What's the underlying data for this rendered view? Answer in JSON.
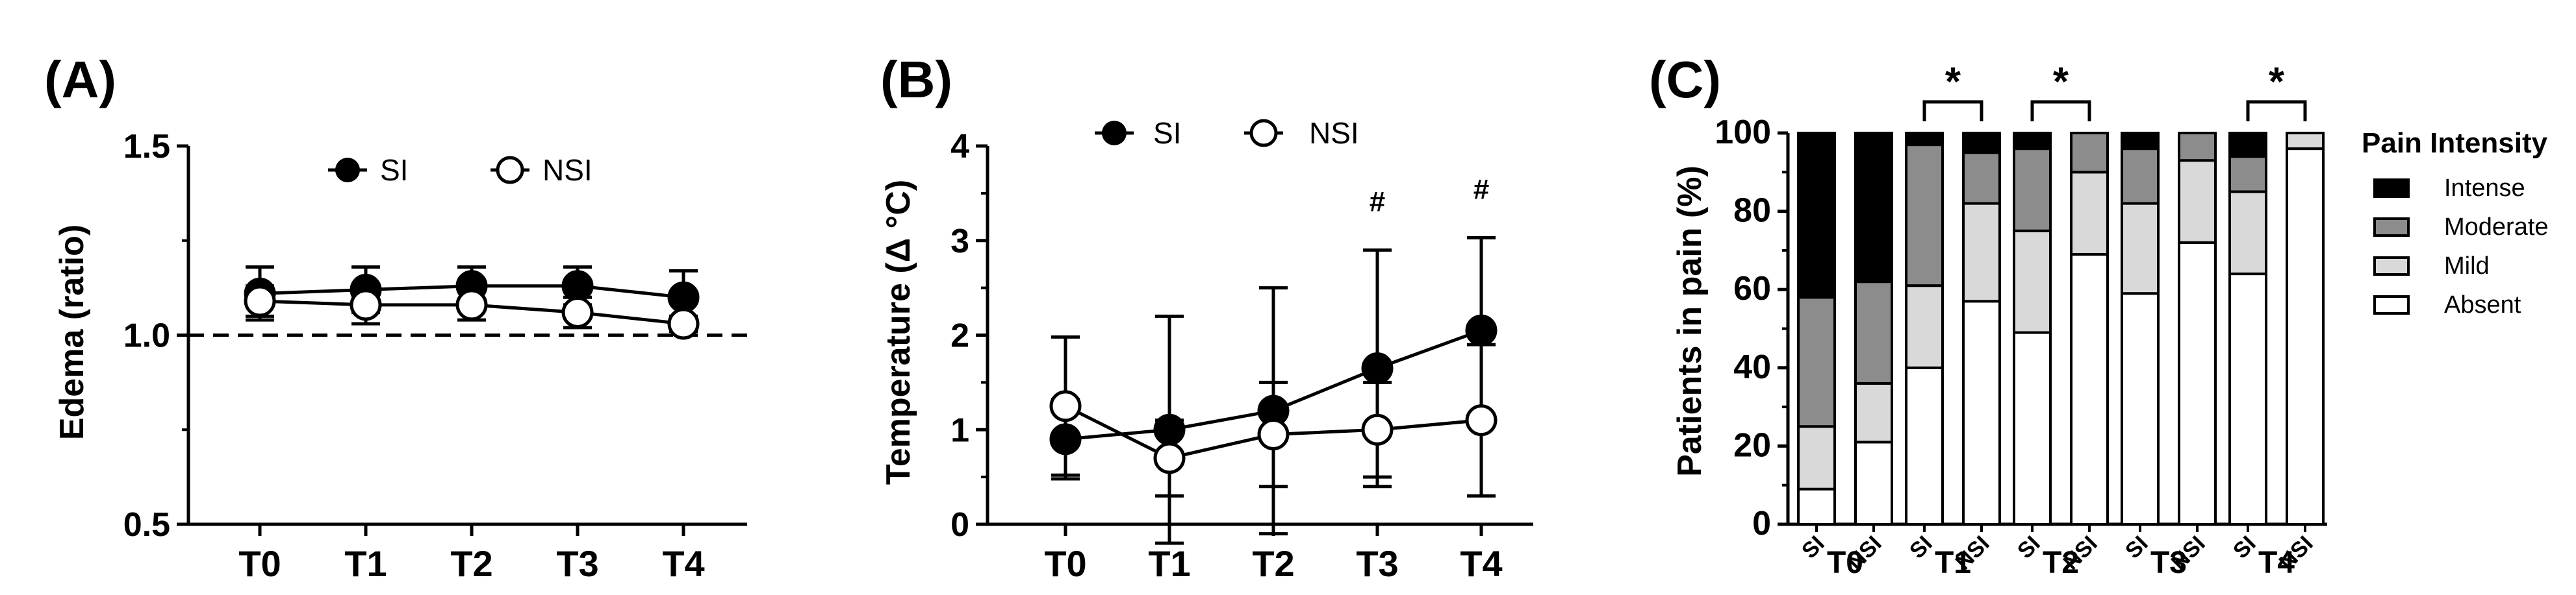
{
  "colors": {
    "axis": "#000000",
    "filled_marker": "#000000",
    "open_marker": "#ffffff",
    "intense": "#000000",
    "moderate": "#8c8c8c",
    "mild": "#d9d9d9",
    "absent": "#ffffff"
  },
  "chart_data": [
    {
      "panel": "(A)",
      "type": "line",
      "title": "",
      "xlabel": "",
      "ylabel": "Edema (ratio)",
      "categories": [
        "T0",
        "T1",
        "T2",
        "T3",
        "T4"
      ],
      "ylim": [
        0.5,
        1.5
      ],
      "yticks": [
        "0.5",
        "1.0",
        "1.5"
      ],
      "reference_line": 1.0,
      "legend": [
        "SI",
        "NSI"
      ],
      "series": [
        {
          "name": "SI",
          "marker": "filled",
          "values": [
            1.11,
            1.12,
            1.13,
            1.13,
            1.1
          ],
          "err": [
            0.07,
            0.06,
            0.05,
            0.05,
            0.07
          ]
        },
        {
          "name": "NSI",
          "marker": "open",
          "values": [
            1.09,
            1.08,
            1.08,
            1.06,
            1.03
          ],
          "err": [
            0.04,
            0.05,
            0.04,
            0.04,
            0.02
          ]
        }
      ]
    },
    {
      "panel": "(B)",
      "type": "line",
      "title": "",
      "xlabel": "",
      "ylabel": "Temperature (Δ °C)",
      "categories": [
        "T0",
        "T1",
        "T2",
        "T3",
        "T4"
      ],
      "ylim": [
        0,
        4
      ],
      "yticks": [
        "0",
        "1",
        "2",
        "3",
        "4"
      ],
      "legend": [
        "SI",
        "NSI"
      ],
      "annotations": [
        {
          "category": "T3",
          "text": "#"
        },
        {
          "category": "T4",
          "text": "#"
        }
      ],
      "series": [
        {
          "name": "SI",
          "marker": "filled",
          "values": [
            0.9,
            1.0,
            1.2,
            1.65,
            2.05
          ],
          "err": [
            0.42,
            1.2,
            1.3,
            1.25,
            0.98
          ]
        },
        {
          "name": "NSI",
          "marker": "open",
          "values": [
            1.25,
            0.7,
            0.95,
            1.0,
            1.1
          ],
          "err": [
            0.73,
            0.4,
            0.55,
            0.5,
            0.8
          ]
        }
      ]
    },
    {
      "panel": "(C)",
      "type": "bar",
      "stacked": true,
      "title": "",
      "xlabel": "",
      "ylabel": "Patients in pain (%)",
      "ylim": [
        0,
        100
      ],
      "yticks": [
        "0",
        "20",
        "40",
        "60",
        "80",
        "100"
      ],
      "legend_title": "Pain Intensity",
      "legend": [
        "Intense",
        "Moderate",
        "Mild",
        "Absent"
      ],
      "groups": [
        "T0",
        "T1",
        "T2",
        "T3",
        "T4"
      ],
      "subcategories": [
        "SI",
        "NSI"
      ],
      "significance": [
        {
          "group": "T1",
          "text": "*"
        },
        {
          "group": "T2",
          "text": "*"
        },
        {
          "group": "T4",
          "text": "*"
        }
      ],
      "bars": [
        {
          "group": "T0",
          "sub": "SI",
          "absent": 9,
          "mild": 16,
          "moderate": 33,
          "intense": 42
        },
        {
          "group": "T0",
          "sub": "NSI",
          "absent": 21,
          "mild": 15,
          "moderate": 26,
          "intense": 38
        },
        {
          "group": "T1",
          "sub": "SI",
          "absent": 40,
          "mild": 21,
          "moderate": 36,
          "intense": 3
        },
        {
          "group": "T1",
          "sub": "NSI",
          "absent": 57,
          "mild": 25,
          "moderate": 13,
          "intense": 5
        },
        {
          "group": "T2",
          "sub": "SI",
          "absent": 49,
          "mild": 26,
          "moderate": 21,
          "intense": 4
        },
        {
          "group": "T2",
          "sub": "NSI",
          "absent": 69,
          "mild": 21,
          "moderate": 10,
          "intense": 0
        },
        {
          "group": "T3",
          "sub": "SI",
          "absent": 59,
          "mild": 23,
          "moderate": 14,
          "intense": 4
        },
        {
          "group": "T3",
          "sub": "NSI",
          "absent": 72,
          "mild": 21,
          "moderate": 7,
          "intense": 0
        },
        {
          "group": "T4",
          "sub": "SI",
          "absent": 64,
          "mild": 21,
          "moderate": 9,
          "intense": 6
        },
        {
          "group": "T4",
          "sub": "NSI",
          "absent": 96,
          "mild": 4,
          "moderate": 0,
          "intense": 0
        }
      ]
    }
  ]
}
